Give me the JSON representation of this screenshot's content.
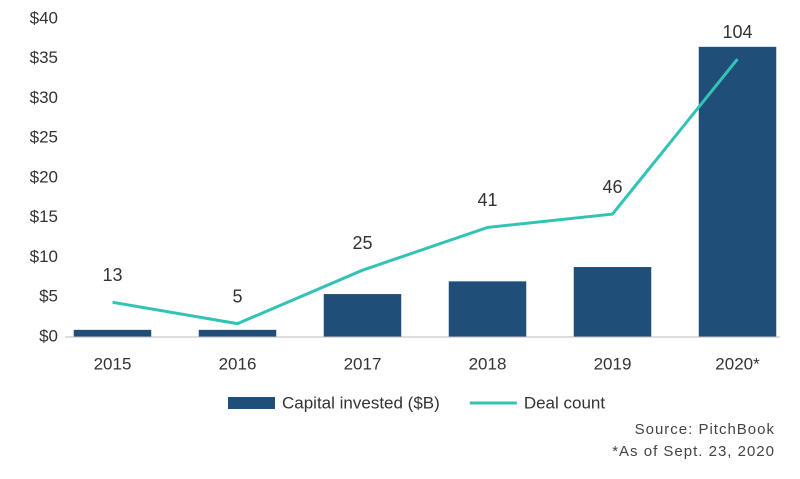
{
  "chart_data": {
    "type": "bar_line",
    "categories": [
      "2015",
      "2016",
      "2017",
      "2018",
      "2019",
      "2020*"
    ],
    "series": [
      {
        "name": "Capital invested ($B)",
        "type": "bar",
        "color": "#1f4e79",
        "values": [
          0.9,
          0.9,
          5.4,
          7.0,
          8.8,
          36.5
        ]
      },
      {
        "name": "Deal count",
        "type": "line",
        "color": "#33c3b5",
        "axis": "y2",
        "values": [
          13,
          5,
          25,
          41,
          46,
          104
        ]
      }
    ],
    "ylim": [
      0,
      40
    ],
    "yticks": [
      {
        "value": 0,
        "label": "$0"
      },
      {
        "value": 5,
        "label": "$5"
      },
      {
        "value": 10,
        "label": "$10"
      },
      {
        "value": 15,
        "label": "$15"
      },
      {
        "value": 20,
        "label": "$20"
      },
      {
        "value": 25,
        "label": "$25"
      },
      {
        "value": 30,
        "label": "$30"
      },
      {
        "value": 35,
        "label": "$35"
      },
      {
        "value": 40,
        "label": "$40"
      }
    ],
    "y2lim": [
      0,
      119
    ],
    "grid": false,
    "legend": "bottom",
    "notes": [
      "Source: PitchBook",
      "*As of Sept. 23, 2020"
    ]
  }
}
